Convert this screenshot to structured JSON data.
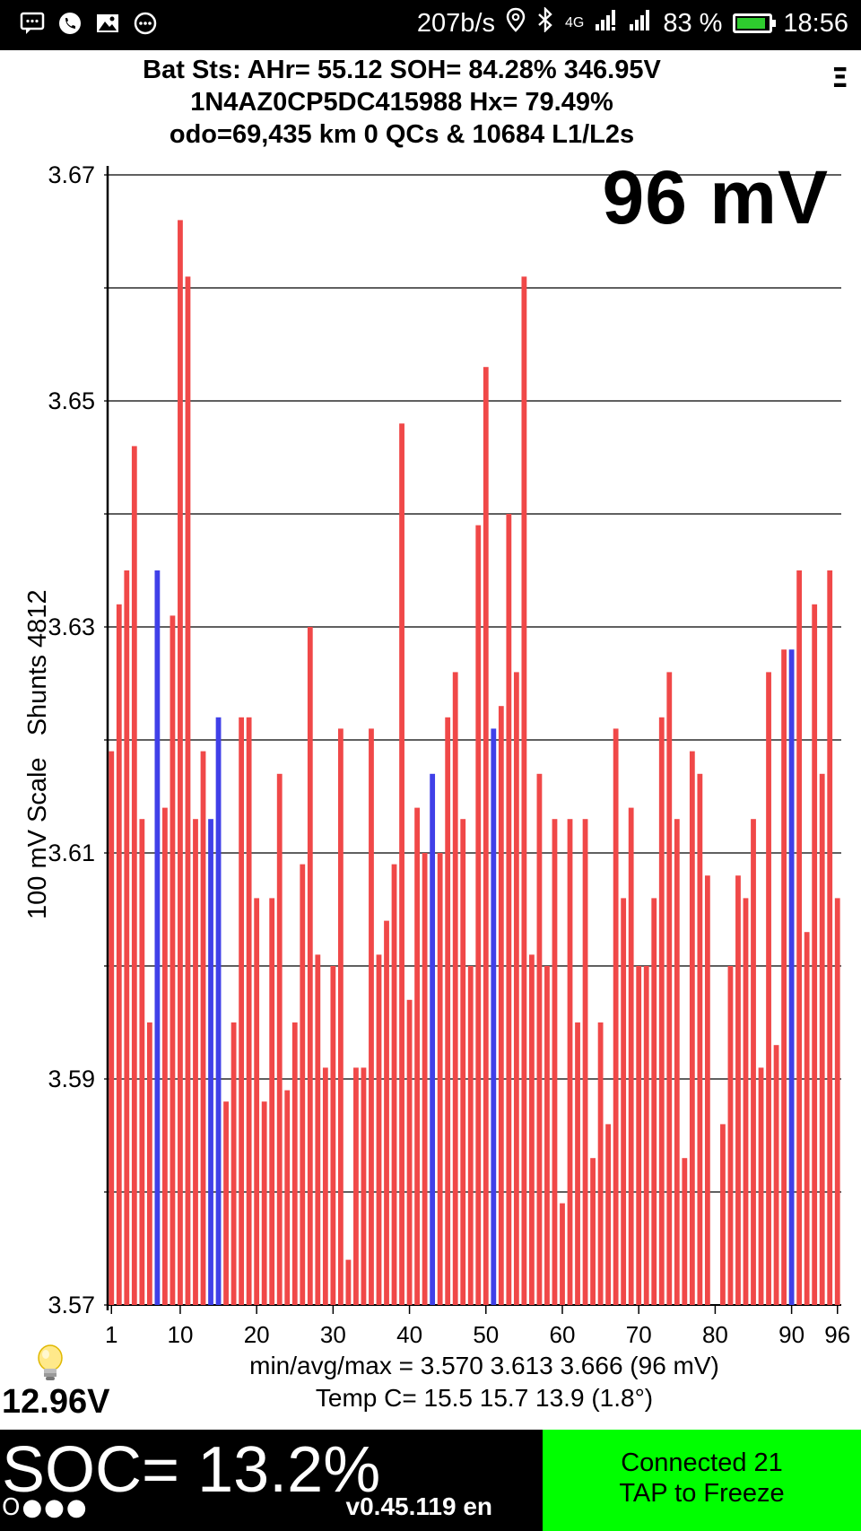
{
  "status_bar": {
    "net_speed": "207b/s",
    "network": "4G",
    "battery_percent": "83 %",
    "battery_level": 0.83,
    "time": "18:56",
    "left_icons": [
      "message-icon",
      "phone-icon",
      "image-icon",
      "more-icon"
    ],
    "right_icons": [
      "location-icon",
      "bluetooth-icon",
      "signal-icon",
      "signal-icon",
      "battery-icon"
    ]
  },
  "header": {
    "line1": "Bat Sts:  AHr= 55.12  SOH= 84.28%   346.95V",
    "line2": "1N4AZ0CP5DC415988   Hx= 79.49%",
    "line3": "odo=69,435 km 0 QCs & 10684 L1/L2s",
    "menu_glyph": "Ξ"
  },
  "spread_label": "96 mV",
  "y_axis_title": "100 mV Scale   Shunts 4812",
  "colors": {
    "bar_normal": "#f04848",
    "bar_shunt": "#4040e8"
  },
  "chart_data": {
    "type": "bar",
    "xlabel": "",
    "ylabel": "100 mV Scale   Shunts 4812",
    "ylim": [
      3.57,
      3.67
    ],
    "y_ticks": [
      "3.67",
      "3.65",
      "3.63",
      "3.61",
      "3.59",
      "3.57"
    ],
    "y_tick_values": [
      3.67,
      3.65,
      3.63,
      3.61,
      3.59,
      3.57
    ],
    "grid_values": [
      3.67,
      3.66,
      3.65,
      3.64,
      3.63,
      3.62,
      3.61,
      3.6,
      3.59,
      3.58,
      3.57
    ],
    "x_ticks": [
      "1",
      "10",
      "20",
      "30",
      "40",
      "50",
      "60",
      "70",
      "80",
      "90",
      "96"
    ],
    "x_tick_values": [
      1,
      10,
      20,
      30,
      40,
      50,
      60,
      70,
      80,
      90,
      96
    ],
    "cells": [
      1,
      2,
      3,
      4,
      5,
      6,
      7,
      8,
      9,
      10,
      11,
      12,
      13,
      14,
      15,
      16,
      17,
      18,
      19,
      20,
      21,
      22,
      23,
      24,
      25,
      26,
      27,
      28,
      29,
      30,
      31,
      32,
      33,
      34,
      35,
      36,
      37,
      38,
      39,
      40,
      41,
      42,
      43,
      44,
      45,
      46,
      47,
      48,
      49,
      50,
      51,
      52,
      53,
      54,
      55,
      56,
      57,
      58,
      59,
      60,
      61,
      62,
      63,
      64,
      65,
      66,
      67,
      68,
      69,
      70,
      71,
      72,
      73,
      74,
      75,
      76,
      77,
      78,
      79,
      80,
      81,
      82,
      83,
      84,
      85,
      86,
      87,
      88,
      89,
      90,
      91,
      92,
      93,
      94,
      95,
      96
    ],
    "values": [
      3.619,
      3.632,
      3.635,
      3.646,
      3.613,
      3.595,
      3.635,
      3.614,
      3.631,
      3.666,
      3.661,
      3.613,
      3.619,
      3.613,
      3.622,
      3.588,
      3.595,
      3.622,
      3.622,
      3.606,
      3.588,
      3.606,
      3.617,
      3.589,
      3.595,
      3.609,
      3.63,
      3.601,
      3.591,
      3.6,
      3.621,
      3.574,
      3.591,
      3.591,
      3.621,
      3.601,
      3.604,
      3.609,
      3.648,
      3.597,
      3.614,
      3.61,
      3.617,
      3.61,
      3.622,
      3.626,
      3.613,
      3.6,
      3.639,
      3.653,
      3.621,
      3.623,
      3.64,
      3.626,
      3.661,
      3.601,
      3.617,
      3.6,
      3.613,
      3.579,
      3.613,
      3.595,
      3.613,
      3.583,
      3.595,
      3.586,
      3.621,
      3.606,
      3.614,
      3.6,
      3.6,
      3.606,
      3.622,
      3.626,
      3.613,
      3.583,
      3.619,
      3.617,
      3.608,
      3.57,
      3.586,
      3.6,
      3.608,
      3.606,
      3.613,
      3.591,
      3.626,
      3.593,
      3.628,
      3.628,
      3.635,
      3.603,
      3.632,
      3.617,
      3.635,
      3.606
    ],
    "shunt_cells": [
      7,
      14,
      15,
      43,
      51,
      90
    ],
    "stats_line": "min/avg/max = 3.570 3.613 3.666  (96 mV)",
    "temp_line": "Temp C= 15.5  15.7  13.9  (1.8°)"
  },
  "pack_voltage": "12.96V",
  "soc_label": "SOC= 13.2%",
  "dots": "O●●●",
  "version": "v0.45.119 en",
  "connection": {
    "line1": "Connected 21",
    "line2": "TAP to Freeze"
  }
}
